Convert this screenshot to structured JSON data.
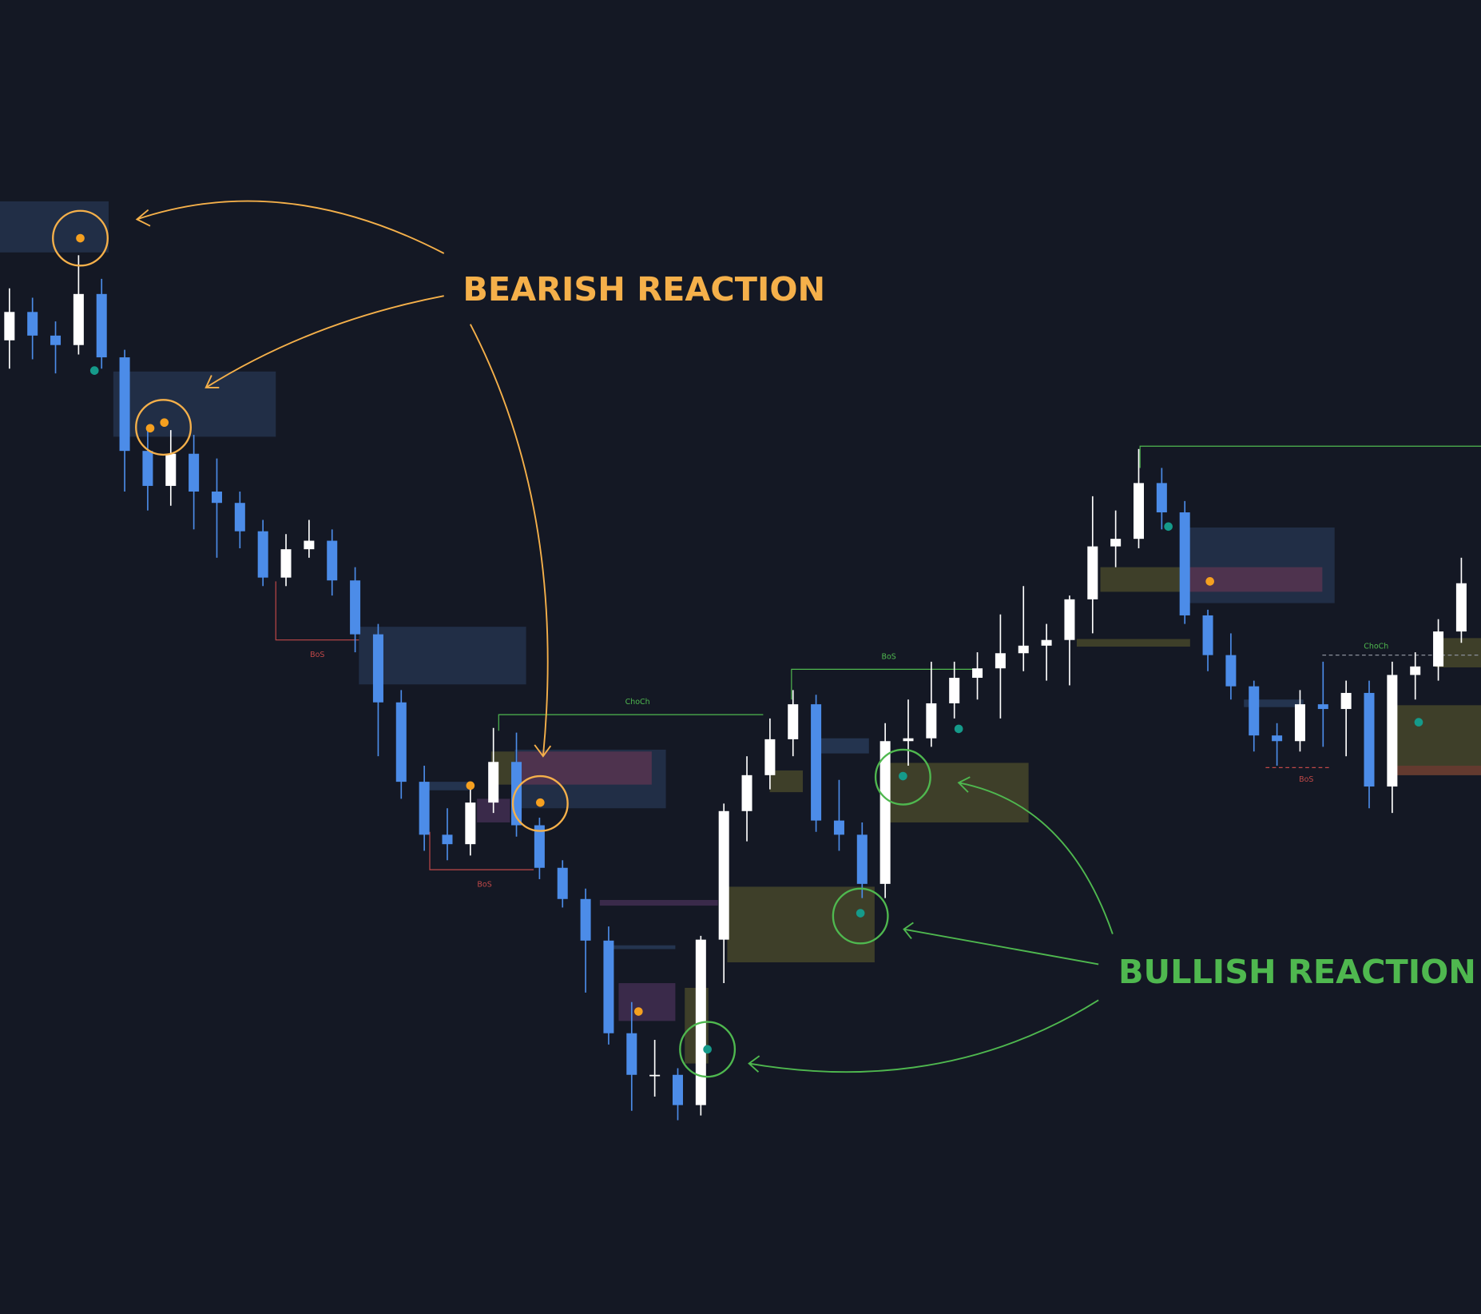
{
  "chart_data": {
    "type": "candlestick",
    "open": [
      1030,
      1060,
      1035,
      1025,
      1079,
      1012,
      913,
      876,
      910,
      870,
      858,
      828,
      779,
      809,
      818,
      776,
      719,
      647,
      563,
      507,
      497,
      541,
      584,
      517,
      472,
      439,
      395,
      297,
      253,
      253,
      221,
      396,
      532,
      570,
      608,
      645,
      522,
      507,
      455,
      606,
      609,
      646,
      673,
      683,
      699,
      707,
      713,
      756,
      812,
      820,
      879,
      848,
      739,
      697,
      664,
      612,
      606,
      645,
      640,
      657,
      558,
      676,
      685,
      722
    ],
    "high": [
      1085,
      1075,
      1050,
      1120,
      1095,
      1020,
      935,
      935,
      930,
      905,
      870,
      840,
      825,
      840,
      830,
      790,
      730,
      660,
      580,
      535,
      560,
      620,
      615,
      525,
      480,
      450,
      410,
      330,
      290,
      260,
      400,
      540,
      590,
      630,
      660,
      655,
      565,
      520,
      625,
      650,
      690,
      690,
      700,
      740,
      770,
      730,
      760,
      865,
      850,
      915,
      895,
      860,
      745,
      720,
      670,
      625,
      660,
      690,
      670,
      670,
      690,
      700,
      735,
      800
    ],
    "low": [
      1000,
      1010,
      995,
      1015,
      1000,
      870,
      850,
      855,
      830,
      800,
      810,
      770,
      770,
      800,
      760,
      700,
      590,
      545,
      490,
      480,
      485,
      530,
      505,
      460,
      430,
      340,
      285,
      215,
      230,
      205,
      210,
      350,
      500,
      555,
      590,
      510,
      490,
      440,
      440,
      580,
      600,
      630,
      650,
      630,
      680,
      670,
      665,
      720,
      790,
      810,
      830,
      730,
      680,
      650,
      595,
      580,
      595,
      600,
      590,
      535,
      530,
      650,
      670,
      710
    ],
    "close": [
      1060,
      1035,
      1025,
      1079,
      1012,
      913,
      876,
      910,
      870,
      858,
      828,
      779,
      809,
      818,
      776,
      719,
      647,
      563,
      507,
      497,
      541,
      584,
      517,
      472,
      439,
      395,
      297,
      253,
      253,
      221,
      396,
      532,
      570,
      608,
      645,
      522,
      507,
      455,
      606,
      609,
      646,
      673,
      683,
      699,
      707,
      713,
      756,
      812,
      820,
      879,
      848,
      739,
      697,
      664,
      612,
      606,
      645,
      640,
      657,
      558,
      676,
      685,
      722,
      773
    ],
    "up_color": "#ffffff",
    "down_color": "#4c8ce8",
    "ylim": [
      0,
      1390
    ],
    "annotations": {
      "bearish": "BEARISH REACTION",
      "bullish": "BULLISH REACTION",
      "bos": [
        "BoS",
        "BoS",
        "BoS",
        "BoS"
      ],
      "choch": [
        "ChoCh",
        "ChoCh"
      ]
    }
  }
}
